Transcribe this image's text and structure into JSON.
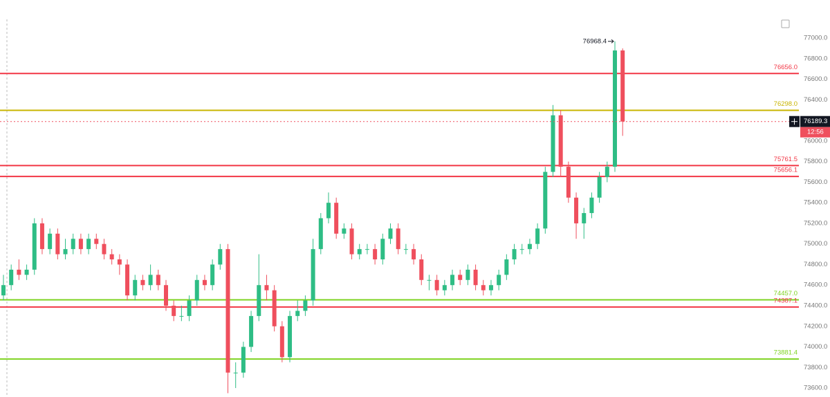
{
  "chart_data": {
    "type": "candlestick",
    "series": [
      {
        "open": [
          74500,
          74600,
          74750,
          74700,
          74750,
          75200,
          74950,
          75100,
          74900,
          74950,
          75050,
          74950,
          75050,
          75000,
          74900,
          74850,
          74800,
          74500,
          74650,
          74600,
          74700,
          74600,
          74400,
          74300,
          74300,
          74450,
          74650,
          74600,
          74800,
          74950,
          73750,
          73750,
          74000,
          74300,
          74600,
          74550,
          74200,
          73900,
          74300,
          74350,
          74450,
          74950,
          75250,
          75400,
          75100,
          75150,
          74900,
          74950,
          74950,
          74850,
          75050,
          75150,
          74950,
          74950,
          74850,
          74650,
          74650,
          74550,
          74600,
          74700,
          74650,
          74750,
          74600,
          74550,
          74600,
          74700,
          74850,
          74950,
          74950,
          75000,
          75150,
          75700,
          76250,
          75750,
          75450,
          75200,
          75300,
          75450,
          75650,
          75750,
          76880
        ],
        "high": [
          74700,
          74800,
          74850,
          74800,
          75250,
          75250,
          75150,
          75150,
          75050,
          75100,
          75100,
          75100,
          75100,
          75050,
          74950,
          74900,
          74850,
          74700,
          74700,
          74800,
          74750,
          74650,
          74450,
          74400,
          74500,
          74700,
          74700,
          74850,
          75000,
          75000,
          73850,
          74050,
          74350,
          74900,
          74700,
          74600,
          74250,
          74350,
          74450,
          74500,
          75050,
          75300,
          75500,
          75450,
          75200,
          75200,
          75000,
          75000,
          75000,
          75100,
          75200,
          75200,
          75000,
          75000,
          74900,
          74700,
          74700,
          74650,
          74750,
          74750,
          74800,
          74800,
          74650,
          74650,
          74750,
          74900,
          75000,
          75000,
          75050,
          75200,
          75750,
          76350,
          76300,
          75800,
          75500,
          75350,
          75500,
          75700,
          75800,
          76968.4,
          76900
        ],
        "low": [
          74450,
          74550,
          74650,
          74650,
          74700,
          74900,
          74900,
          74850,
          74850,
          74900,
          74900,
          74900,
          74950,
          74850,
          74800,
          74700,
          74450,
          74450,
          74550,
          74550,
          74550,
          74350,
          74250,
          74250,
          74250,
          74400,
          74550,
          74550,
          74750,
          73550,
          73600,
          73700,
          73950,
          74250,
          74450,
          74150,
          73850,
          73850,
          74250,
          74300,
          74400,
          74900,
          75200,
          75050,
          75050,
          74850,
          74850,
          74900,
          74800,
          74800,
          75000,
          74900,
          74900,
          74800,
          74600,
          74550,
          74500,
          74500,
          74550,
          74600,
          74600,
          74550,
          74500,
          74500,
          74550,
          74650,
          74800,
          74900,
          74900,
          74950,
          75100,
          75650,
          75650,
          75400,
          75050,
          75050,
          75250,
          75400,
          75600,
          75700,
          76050
        ],
        "close": [
          74600,
          74750,
          74700,
          74750,
          75200,
          74950,
          75100,
          74900,
          74950,
          75050,
          74950,
          75050,
          75000,
          74900,
          74850,
          74800,
          74500,
          74650,
          74600,
          74700,
          74600,
          74400,
          74300,
          74300,
          74450,
          74650,
          74600,
          74800,
          74950,
          73750,
          73750,
          74000,
          74300,
          74600,
          74550,
          74200,
          73900,
          74300,
          74350,
          74450,
          74950,
          75250,
          75400,
          75100,
          75150,
          74900,
          74950,
          74950,
          74850,
          75050,
          75150,
          74950,
          74950,
          74850,
          74650,
          74650,
          74550,
          74600,
          74700,
          74650,
          74750,
          74600,
          74550,
          74600,
          74700,
          74850,
          74950,
          74950,
          75000,
          75150,
          75700,
          76250,
          75750,
          75450,
          75200,
          75300,
          75450,
          75650,
          75750,
          76880,
          76189.3
        ],
        "up_color": "#2ebd85",
        "down_color": "#ef4f5d"
      }
    ],
    "ylim": [
      73513,
      77370
    ],
    "yticks": [
      {
        "value": 73600,
        "label": "73600.0"
      },
      {
        "value": 73800,
        "label": "73800.0"
      },
      {
        "value": 74000,
        "label": "74000.0"
      },
      {
        "value": 74200,
        "label": "74200.0"
      },
      {
        "value": 74400,
        "label": "74400.0"
      },
      {
        "value": 74600,
        "label": "74600.0"
      },
      {
        "value": 74800,
        "label": "74800.0"
      },
      {
        "value": 75000,
        "label": "75000.0"
      },
      {
        "value": 75200,
        "label": "75200.0"
      },
      {
        "value": 75400,
        "label": "75400.0"
      },
      {
        "value": 75600,
        "label": "75600.0"
      },
      {
        "value": 75800,
        "label": "75800.0"
      },
      {
        "value": 76000,
        "label": "76000.0"
      },
      {
        "value": 76200,
        "label": "76200.0"
      },
      {
        "value": 76400,
        "label": "76400.0"
      },
      {
        "value": 76600,
        "label": "76600.0"
      },
      {
        "value": 76800,
        "label": "76800.0"
      },
      {
        "value": 77000,
        "label": "77000.0"
      }
    ],
    "levels": [
      {
        "value": 76656,
        "label": "76656.0",
        "color": "#f23645"
      },
      {
        "value": 76298,
        "label": "76298.0",
        "color": "#c8b400"
      },
      {
        "value": 75761.5,
        "label": "75761.5",
        "color": "#f23645"
      },
      {
        "value": 75656.1,
        "label": "75656.1",
        "color": "#f23645"
      },
      {
        "value": 74457,
        "label": "74457.0",
        "color": "#7ed321"
      },
      {
        "value": 74387.1,
        "label": "74387.1",
        "color": "#f23645"
      },
      {
        "value": 73881.4,
        "label": "73881.4",
        "color": "#7ed321"
      }
    ],
    "countdown": "12:56"
  }
}
